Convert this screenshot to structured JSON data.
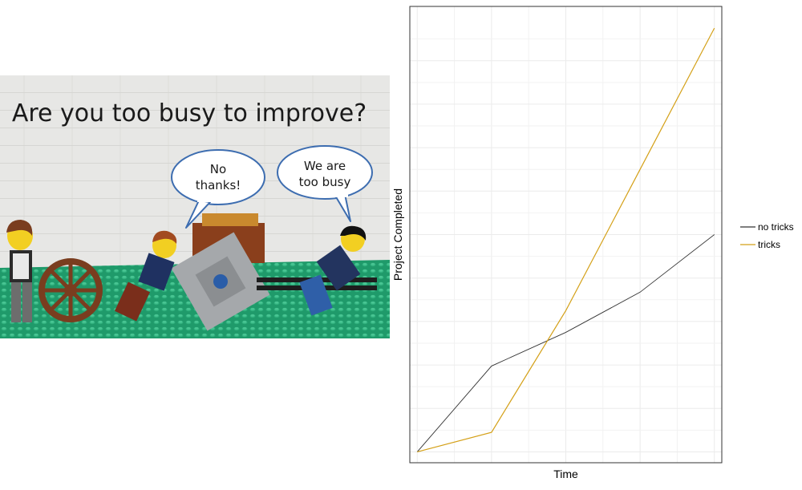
{
  "photo": {
    "title": "Are you too busy to improve?",
    "bubble_left": [
      "No",
      "thanks!"
    ],
    "bubble_right": [
      "We are",
      "too busy"
    ]
  },
  "chart_data": {
    "type": "line",
    "x": [
      1,
      2,
      3,
      4,
      5
    ],
    "series": [
      {
        "name": "no tricks",
        "color": "#333333",
        "values": [
          1,
          8.9,
          12,
          15.7,
          21
        ]
      },
      {
        "name": "tricks",
        "color": "#D4A017",
        "values": [
          1,
          2.8,
          14,
          27,
          40
        ]
      }
    ],
    "xlim": [
      0.9,
      5.1
    ],
    "ylim": [
      0,
      42
    ],
    "xlabel": "Time",
    "ylabel": "Project Completed",
    "grid": true,
    "legend": "right"
  }
}
